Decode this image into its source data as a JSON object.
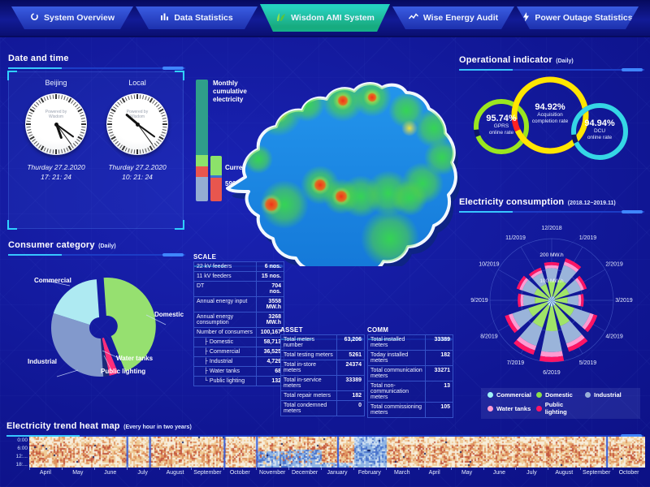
{
  "nav": {
    "tabs": [
      {
        "label": "System Overview",
        "icon": "ring-icon",
        "active": false
      },
      {
        "label": "Data Statistics",
        "icon": "bars-icon",
        "active": false
      },
      {
        "label": "Wisdom AMI System",
        "icon": "wisdom-logo",
        "active": true
      },
      {
        "label": "Wise Energy Audit",
        "icon": "wave-icon",
        "active": false
      },
      {
        "label": "Power Outage Statistics",
        "icon": "bolt-icon",
        "active": false
      }
    ]
  },
  "datetime": {
    "title": "Date and time",
    "watermark": "Powered by\nWisdom",
    "clocks": [
      {
        "name": "Beijing",
        "date": "Thurday 27.2.2020",
        "time": "17: 21: 24",
        "h": 17,
        "m": 21,
        "s": 24
      },
      {
        "name": "Local",
        "date": "Thurday 27.2.2020",
        "time": "10: 21: 24",
        "h": 10,
        "m": 21,
        "s": 24
      }
    ]
  },
  "consumer": {
    "title": "Consumer category",
    "suffix": "(Daily)",
    "chart_data": {
      "type": "pie",
      "slices": [
        {
          "name": "Domestic",
          "pct": 45,
          "color": "#96e070",
          "exploded": true
        },
        {
          "name": "Water tanks",
          "pct": 3,
          "color": "#ff2d7a",
          "exploded": false
        },
        {
          "name": "Public lighting",
          "pct": 2,
          "color": "#1b2a78",
          "exploded": false
        },
        {
          "name": "Industrial",
          "pct": 31,
          "color": "#8299cc",
          "exploded": false
        },
        {
          "name": "Commercial",
          "pct": 19,
          "color": "#aeeaf2",
          "exploded": false
        }
      ]
    }
  },
  "flows": {
    "monthly_label": "Monthly\ncumulative\nelectricity",
    "current_label": "Current load",
    "current_value": "590,559 kW",
    "monthly_segments": [
      {
        "color": "#2f9e8a",
        "pct": 62
      },
      {
        "color": "#8ce26a",
        "pct": 9
      },
      {
        "color": "#e8564e",
        "pct": 9
      },
      {
        "color": "#94add2",
        "pct": 20
      }
    ],
    "current_segments": [
      {
        "color": "#8ce26a",
        "pct": 47
      },
      {
        "color": "#e8564e",
        "pct": 53
      }
    ]
  },
  "scale": {
    "title": "SCALE",
    "rows": [
      {
        "label": "22 kV feeders",
        "value": "6 nos."
      },
      {
        "label": "11 kV feeders",
        "value": "15 nos."
      },
      {
        "label": "DT",
        "value": "704 nos."
      },
      {
        "label": "Annual energy input",
        "value": "3558\nMW.h"
      },
      {
        "label": "Annual energy\nconsumption",
        "value": "3268\nMW.h"
      },
      {
        "label": "Number of consumers",
        "value": "100,167"
      },
      {
        "label": "├ Domestic",
        "value": "58,713",
        "indent": true
      },
      {
        "label": "├ Commercial",
        "value": "36,525",
        "indent": true
      },
      {
        "label": "├ Industrial",
        "value": "4,729",
        "indent": true
      },
      {
        "label": "├ Water tanks",
        "value": "68",
        "indent": true
      },
      {
        "label": "└ Public lighting",
        "value": "132",
        "indent": true
      }
    ]
  },
  "asset": {
    "title": "ASSET",
    "rows": [
      {
        "label": "Total meters number",
        "value": "63,206"
      },
      {
        "label": "Total testing meters",
        "value": "5261"
      },
      {
        "label": "Total in-store meters",
        "value": "24374"
      },
      {
        "label": "Total in-service meters",
        "value": "33389"
      },
      {
        "label": "Total repair meters",
        "value": "182"
      },
      {
        "label": "Total condemned meters",
        "value": "0"
      }
    ]
  },
  "comm": {
    "title": "COMM",
    "rows": [
      {
        "label": "Total installed meters",
        "value": "33389"
      },
      {
        "label": "Today installed meters",
        "value": "182"
      },
      {
        "label": "Total communication meters",
        "value": "33271"
      },
      {
        "label": "Total non-communication\nmeters",
        "value": "13"
      },
      {
        "label": "Total commissioning meters",
        "value": "105"
      }
    ]
  },
  "operational": {
    "title": "Operational indicator",
    "suffix": "(Daily)",
    "gauges": [
      {
        "value": "95.74%",
        "line1": "GPRS",
        "line2": "online rate",
        "color": "#9ae620",
        "notch": "#0d1668",
        "pct": 0.9574
      },
      {
        "value": "94.92%",
        "line1": "Acquisition",
        "line2": "completion rate",
        "color": "#ffe600",
        "notch": "#ff2222",
        "pct": 0.9492
      },
      {
        "value": "94.94%",
        "line1": "DCU",
        "line2": "online rate",
        "color": "#35d6e6",
        "notch": "#0d1668",
        "pct": 0.9494
      }
    ]
  },
  "consumption": {
    "title": "Electricity consumption",
    "suffix": "(2018.12~2019.11)",
    "axis_labels": [
      "200 MW.h",
      "100 MW.h"
    ],
    "chart_data": {
      "type": "rose",
      "unit": "MW.h",
      "rlim": [
        0,
        200
      ],
      "months": [
        "12/2018",
        "1/2019",
        "2/2019",
        "3/2019",
        "4/2019",
        "5/2019",
        "6/2019",
        "7/2019",
        "8/2019",
        "9/2019",
        "10/2019",
        "11/2019"
      ],
      "values": [
        124,
        144,
        120,
        104,
        156,
        176,
        200,
        186,
        160,
        110,
        120,
        112
      ],
      "rings": [
        {
          "name": "Commercial",
          "frac": 0.1,
          "color": "#bfeef5"
        },
        {
          "name": "Domestic",
          "frac": 0.4,
          "color": "#a0e468"
        },
        {
          "name": "Industrial",
          "frac": 0.34,
          "color": "#9ab4da"
        },
        {
          "name": "Water tanks",
          "frac": 0.08,
          "color": "#ff9ad2"
        },
        {
          "name": "Public lighting",
          "frac": 0.08,
          "color": "#ff1464"
        }
      ]
    },
    "legend": [
      {
        "label": "Commercial",
        "color": "#9ff3f8"
      },
      {
        "label": "Domestic",
        "color": "#8ce04a"
      },
      {
        "label": "Industrial",
        "color": "#9ab0d8"
      },
      {
        "label": "Water tanks",
        "color": "#ff9ad2"
      },
      {
        "label": "Public lighting",
        "color": "#ff1464"
      }
    ]
  },
  "heatmap": {
    "title": "Electricity trend heat map",
    "suffix": "(Every hour in two years)",
    "row_labels": [
      "0:00",
      "6:00",
      "12:...",
      "18:..."
    ],
    "months": [
      "April",
      "May",
      "June",
      "July",
      "August",
      "September",
      "October",
      "November",
      "December",
      "January",
      "February",
      "March",
      "April",
      "May",
      "June",
      "July",
      "August",
      "September",
      "October"
    ],
    "cold_levels": {
      "7": 0.55,
      "8": 0.6,
      "9": 0.2,
      "10": 1
    },
    "dividers": [
      3,
      3.7,
      6,
      7,
      9.5,
      17.8
    ]
  }
}
